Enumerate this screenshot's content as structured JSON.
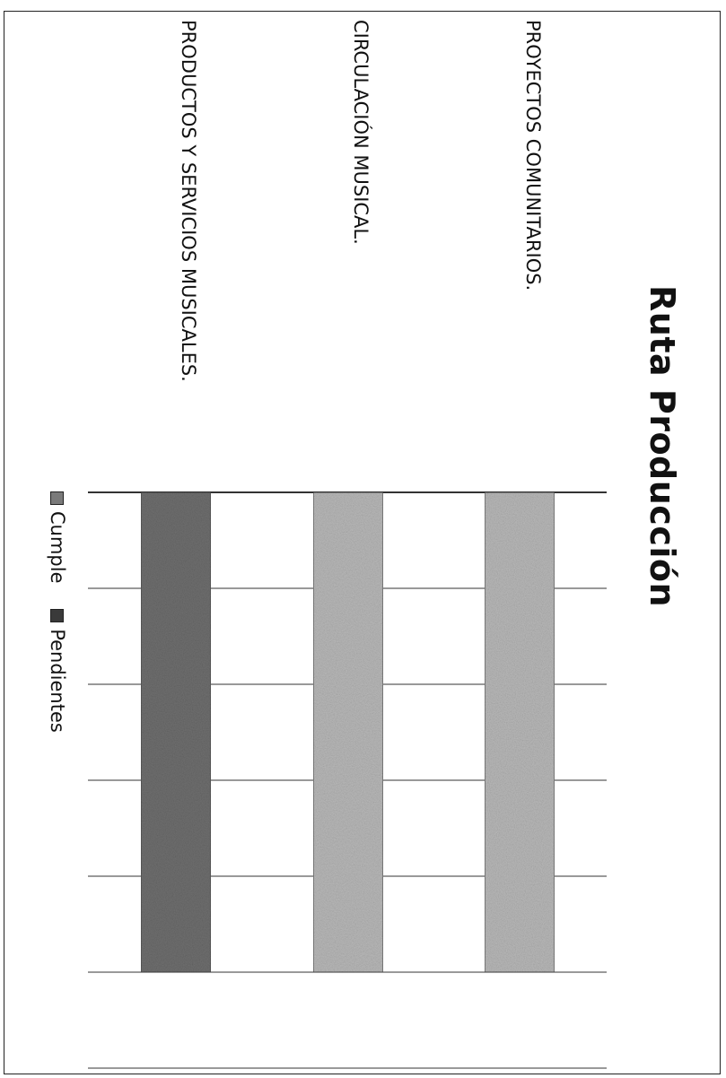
{
  "chart_data": {
    "type": "bar",
    "orientation": "horizontal",
    "title": "Ruta Producción",
    "categories": [
      "PROYECTOS COMUNITARIOS.",
      "CIRCULACIÓN MUSICAL.",
      "PRODUCTOS Y SERVICIOS MUSICALES."
    ],
    "series": [
      {
        "name": "Cumple",
        "values": [
          5,
          5,
          5
        ],
        "color": "#7a7a7a"
      },
      {
        "name": "Pendientes",
        "values": [
          0,
          0,
          0
        ],
        "color": "#3a3a3a"
      }
    ],
    "xlim": [
      0,
      6
    ],
    "stacked": true,
    "grid": true,
    "legend_position": "bottom"
  },
  "legend": {
    "items": [
      {
        "label": "Cumple",
        "color": "#7a7a7a"
      },
      {
        "label": "Pendientes",
        "color": "#3a3a3a"
      }
    ]
  },
  "colors": {
    "bar_light": "#b9b9b9",
    "bar_dark": "#6f6f6f",
    "grid": "#333333"
  }
}
